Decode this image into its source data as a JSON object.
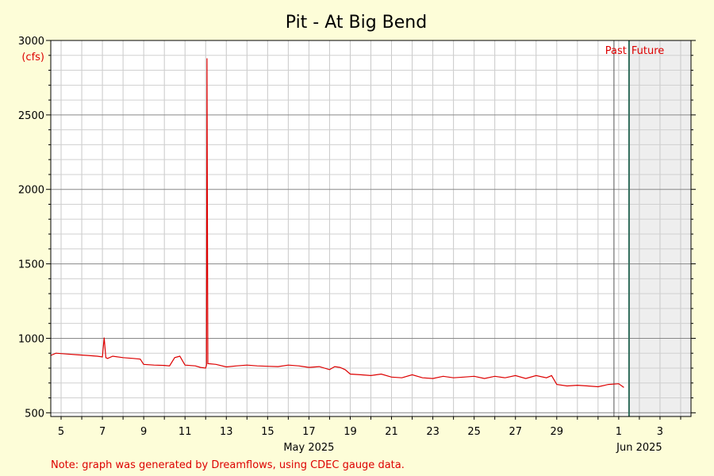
{
  "colors": {
    "background": "#fdfdd8",
    "series": "#dd0000",
    "now_line": "#2e6b5a",
    "future_shade": "#eeeeee",
    "annotation": "#dd0000"
  },
  "chart_data": {
    "type": "line",
    "title": "Pit - At Big Bend",
    "ylabel": "(cfs)",
    "ylim": [
      475,
      3000
    ],
    "yticks": [
      500,
      1000,
      1500,
      2000,
      2500,
      3000
    ],
    "xlim": [
      "2025-05-04T12:00",
      "2025-06-04T12:00"
    ],
    "grid": true,
    "xticks": [
      {
        "date": "2025-05-05",
        "label": "5"
      },
      {
        "date": "2025-05-07",
        "label": "7"
      },
      {
        "date": "2025-05-09",
        "label": "9"
      },
      {
        "date": "2025-05-11",
        "label": "11"
      },
      {
        "date": "2025-05-13",
        "label": "13"
      },
      {
        "date": "2025-05-15",
        "label": "15"
      },
      {
        "date": "2025-05-17",
        "label": "17"
      },
      {
        "date": "2025-05-19",
        "label": "19"
      },
      {
        "date": "2025-05-21",
        "label": "21"
      },
      {
        "date": "2025-05-23",
        "label": "23"
      },
      {
        "date": "2025-05-25",
        "label": "25"
      },
      {
        "date": "2025-05-27",
        "label": "27"
      },
      {
        "date": "2025-05-29",
        "label": "29"
      },
      {
        "date": "2025-06-01",
        "label": "1"
      },
      {
        "date": "2025-06-03",
        "label": "3"
      }
    ],
    "month_labels": [
      {
        "date": "2025-05-17",
        "label": "May 2025"
      },
      {
        "date": "2025-06-02",
        "label": "Jun 2025"
      }
    ],
    "now": "2025-06-01T12:00",
    "annotations": {
      "past": "Past",
      "future": "Future"
    },
    "series": [
      {
        "x": [
          "2025-05-04T12:00",
          "2025-05-04T18:00",
          "2025-05-05T06:00",
          "2025-05-05T18:00",
          "2025-05-06T06:00",
          "2025-05-06T18:00",
          "2025-05-07T00:00",
          "2025-05-07T02:00",
          "2025-05-07T04:00",
          "2025-05-07T06:00",
          "2025-05-07T12:00",
          "2025-05-08T00:00",
          "2025-05-08T12:00",
          "2025-05-08T20:00",
          "2025-05-09T00:00",
          "2025-05-09T12:00",
          "2025-05-10T00:00",
          "2025-05-10T06:00",
          "2025-05-10T12:00",
          "2025-05-10T18:00",
          "2025-05-11T00:00",
          "2025-05-11T12:00",
          "2025-05-11T18:00",
          "2025-05-12T00:00",
          "2025-05-12T01:00",
          "2025-05-12T01:30",
          "2025-05-12T02:30",
          "2025-05-12T03:00",
          "2025-05-12T12:00",
          "2025-05-13T00:00",
          "2025-05-13T12:00",
          "2025-05-14T00:00",
          "2025-05-14T12:00",
          "2025-05-15T00:00",
          "2025-05-15T12:00",
          "2025-05-16T00:00",
          "2025-05-16T12:00",
          "2025-05-17T00:00",
          "2025-05-17T12:00",
          "2025-05-18T00:00",
          "2025-05-18T06:00",
          "2025-05-18T12:00",
          "2025-05-18T18:00",
          "2025-05-19T00:00",
          "2025-05-19T12:00",
          "2025-05-20T00:00",
          "2025-05-20T12:00",
          "2025-05-21T00:00",
          "2025-05-21T12:00",
          "2025-05-22T00:00",
          "2025-05-22T12:00",
          "2025-05-23T00:00",
          "2025-05-23T12:00",
          "2025-05-24T00:00",
          "2025-05-24T12:00",
          "2025-05-25T00:00",
          "2025-05-25T12:00",
          "2025-05-26T00:00",
          "2025-05-26T12:00",
          "2025-05-27T00:00",
          "2025-05-27T12:00",
          "2025-05-28T00:00",
          "2025-05-28T12:00",
          "2025-05-28T18:00",
          "2025-05-29T00:00",
          "2025-05-29T12:00",
          "2025-05-30T00:00",
          "2025-05-30T12:00",
          "2025-05-31T00:00",
          "2025-05-31T12:00",
          "2025-06-01T00:00",
          "2025-06-01T06:00"
        ],
        "y": [
          885,
          900,
          895,
          890,
          885,
          880,
          875,
          1005,
          870,
          865,
          880,
          870,
          865,
          860,
          825,
          820,
          818,
          815,
          870,
          880,
          820,
          815,
          805,
          800,
          820,
          2880,
          830,
          830,
          825,
          808,
          815,
          820,
          815,
          812,
          810,
          820,
          815,
          805,
          810,
          790,
          810,
          805,
          790,
          760,
          755,
          750,
          760,
          740,
          735,
          755,
          735,
          730,
          745,
          735,
          740,
          745,
          730,
          745,
          735,
          750,
          730,
          750,
          735,
          750,
          690,
          680,
          685,
          680,
          675,
          690,
          695,
          670
        ]
      }
    ]
  },
  "footer": {
    "note": "Note: graph was generated by Dreamflows, using CDEC gauge data."
  }
}
